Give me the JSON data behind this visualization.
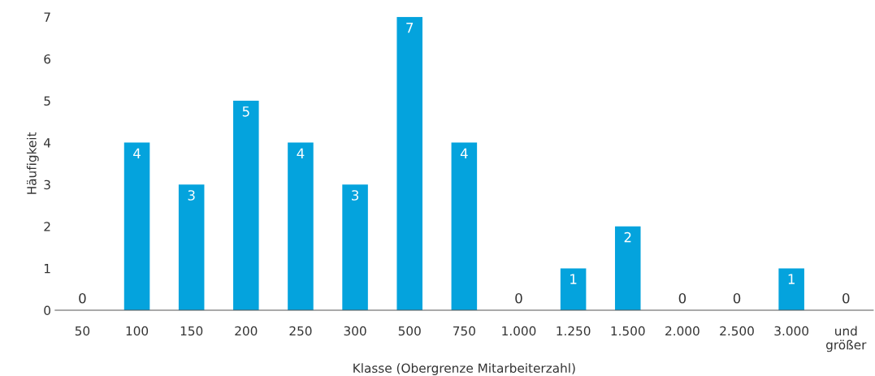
{
  "chart_data": {
    "type": "bar",
    "xlabel": "Klasse (Obergrenze Mitarbeiterzahl)",
    "ylabel": "Häufigkeit",
    "categories": [
      "50",
      "100",
      "150",
      "200",
      "250",
      "300",
      "500",
      "750",
      "1.000",
      "1.250",
      "1.500",
      "2.000",
      "2.500",
      "3.000",
      "und\ngrößer"
    ],
    "values": [
      0,
      4,
      3,
      5,
      4,
      3,
      7,
      4,
      0,
      1,
      2,
      0,
      0,
      1,
      0
    ],
    "color": "#04a3dd",
    "ylim": [
      0,
      7
    ],
    "yticks": [
      0,
      1,
      2,
      3,
      4,
      5,
      6,
      7
    ],
    "grid": false,
    "legend": false,
    "data_labels": true
  }
}
